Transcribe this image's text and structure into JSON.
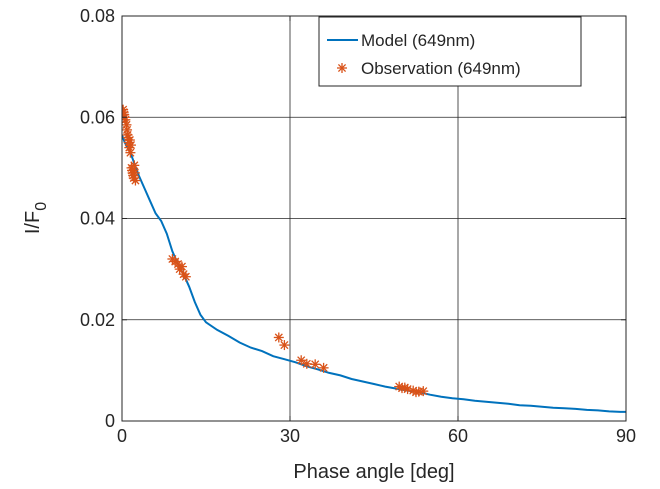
{
  "chart_data": {
    "type": "line",
    "title": "",
    "xlabel": "Phase angle [deg]",
    "ylabel_main": "I/F",
    "ylabel_subscript": "0",
    "xlim": [
      0,
      90
    ],
    "ylim": [
      0,
      0.08
    ],
    "xticks": [
      0,
      30,
      60,
      90
    ],
    "xtick_labels": [
      "0",
      "30",
      "60",
      "90"
    ],
    "yticks": [
      0,
      0.02,
      0.04,
      0.06,
      0.08
    ],
    "ytick_labels": [
      "0",
      "0.02",
      "0.04",
      "0.06",
      "0.08"
    ],
    "grid": true,
    "legend_position": "top-right",
    "series": [
      {
        "name": "Model (649nm)",
        "kind": "line",
        "color": "#0072BD",
        "x": [
          0,
          0.5,
          1,
          1.5,
          2,
          2.5,
          3,
          4,
          5,
          6,
          7,
          8,
          9,
          10,
          11,
          12,
          13,
          14,
          15,
          17,
          19,
          21,
          23,
          25,
          27,
          29,
          31,
          33,
          35,
          37,
          39,
          41,
          43,
          45,
          47,
          49,
          51,
          53,
          55,
          57,
          59,
          61,
          63,
          65,
          67,
          69,
          71,
          73,
          75,
          77,
          79,
          81,
          83,
          85,
          87,
          89,
          90
        ],
        "y": [
          0.0565,
          0.055,
          0.054,
          0.053,
          0.0515,
          0.05,
          0.0485,
          0.046,
          0.0435,
          0.041,
          0.0395,
          0.037,
          0.0335,
          0.031,
          0.029,
          0.0265,
          0.0235,
          0.021,
          0.0195,
          0.018,
          0.0168,
          0.0155,
          0.0145,
          0.0138,
          0.0128,
          0.0122,
          0.0116,
          0.0108,
          0.0102,
          0.0095,
          0.009,
          0.0083,
          0.0078,
          0.0073,
          0.0068,
          0.0064,
          0.006,
          0.0057,
          0.0052,
          0.0048,
          0.0045,
          0.0043,
          0.004,
          0.0038,
          0.0036,
          0.0034,
          0.0031,
          0.003,
          0.0028,
          0.0026,
          0.0025,
          0.0024,
          0.0022,
          0.0021,
          0.0019,
          0.0018,
          0.0018
        ]
      },
      {
        "name": "Observation (649nm)",
        "kind": "scatter",
        "marker": "asterisk",
        "color": "#D95319",
        "x": [
          0.2,
          0.3,
          0.4,
          0.5,
          0.6,
          0.8,
          0.9,
          1.0,
          1.1,
          1.2,
          1.3,
          1.4,
          1.5,
          1.6,
          1.7,
          1.8,
          1.9,
          2.0,
          2.1,
          2.2,
          2.3,
          2.4,
          9.0,
          9.5,
          10.0,
          10.3,
          10.7,
          11.0,
          11.4,
          28.0,
          29.0,
          32.0,
          33.0,
          34.5,
          36.0,
          49.5,
          50.0,
          50.5,
          51.0,
          52.0,
          52.5,
          53.0,
          53.8
        ],
        "y": [
          0.0615,
          0.061,
          0.0605,
          0.06,
          0.0595,
          0.0585,
          0.0575,
          0.0565,
          0.056,
          0.055,
          0.054,
          0.0555,
          0.053,
          0.0545,
          0.05,
          0.0495,
          0.049,
          0.0485,
          0.048,
          0.0505,
          0.049,
          0.0475,
          0.032,
          0.0315,
          0.031,
          0.03,
          0.0305,
          0.029,
          0.0285,
          0.0165,
          0.015,
          0.012,
          0.0113,
          0.0112,
          0.0105,
          0.0068,
          0.0065,
          0.0066,
          0.0063,
          0.006,
          0.0057,
          0.0058,
          0.0059
        ]
      }
    ]
  }
}
